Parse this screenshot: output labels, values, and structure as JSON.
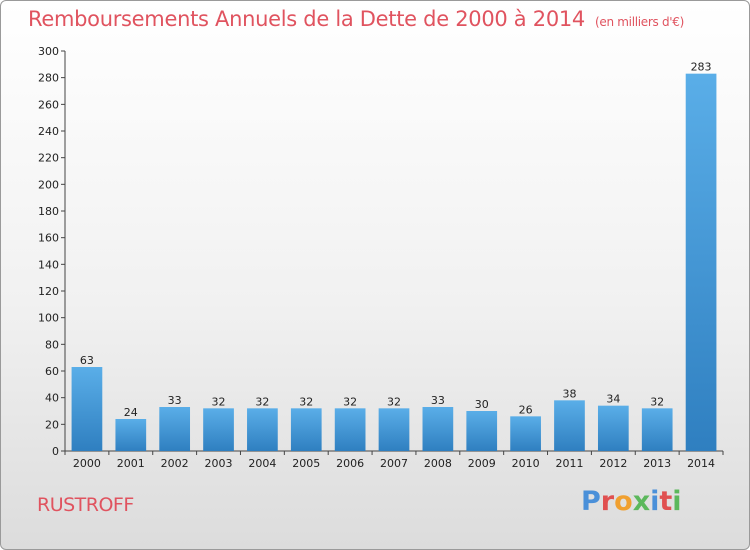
{
  "header": {
    "title": "Remboursements Annuels de la Dette de 2000 à 2014",
    "unit": "(en milliers d'€)"
  },
  "footer": {
    "commune": "RUSTROFF",
    "logo": {
      "text": "Proxiti",
      "colors": [
        "#4a90d9",
        "#e05050",
        "#f0a030",
        "#5cb85c",
        "#4a90d9",
        "#e05050",
        "#5cb85c"
      ]
    }
  },
  "colors": {
    "bar_light": "#5aaee8",
    "bar_dark": "#2f7fc0",
    "title": "#e0535f"
  },
  "chart_data": {
    "type": "bar",
    "title": "Remboursements Annuels de la Dette de 2000 à 2014",
    "subtitle": "(en milliers d'€)",
    "categories": [
      "2000",
      "2001",
      "2002",
      "2003",
      "2004",
      "2005",
      "2006",
      "2007",
      "2008",
      "2009",
      "2010",
      "2011",
      "2012",
      "2013",
      "2014"
    ],
    "values": [
      63,
      24,
      33,
      32,
      32,
      32,
      32,
      32,
      33,
      30,
      26,
      38,
      34,
      32,
      283
    ],
    "ylim": [
      0,
      300
    ],
    "yticks": [
      0,
      20,
      40,
      60,
      80,
      100,
      120,
      140,
      160,
      180,
      200,
      220,
      240,
      260,
      280,
      300
    ],
    "grid": false,
    "legend": "none",
    "xlabel": "",
    "ylabel": ""
  }
}
